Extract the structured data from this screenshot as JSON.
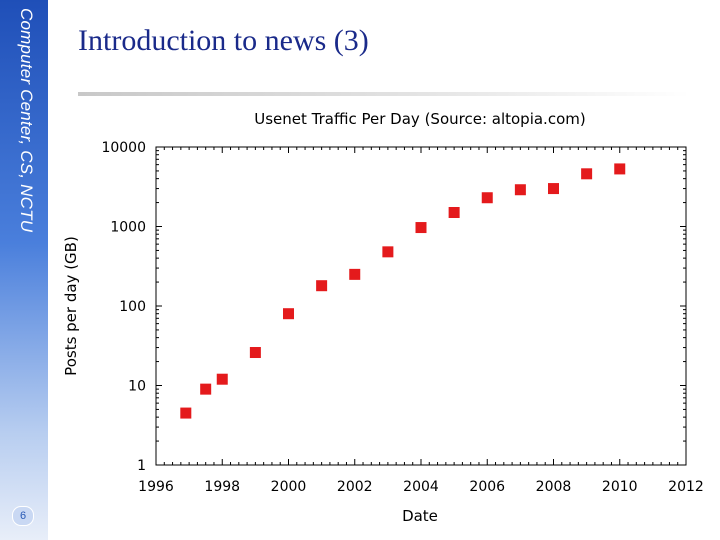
{
  "sidebar": {
    "label": "Computer Center, CS, NCTU",
    "page_number": "6"
  },
  "slide": {
    "title": "Introduction to news (3)"
  },
  "colors": {
    "marker": "#e41a1c",
    "sidebar_top": "#1f4fb8",
    "title": "#1a2a8a"
  },
  "chart_data": {
    "type": "scatter",
    "title": "Usenet Traffic Per Day (Source: altopia.com)",
    "xlabel": "Date",
    "ylabel": "Posts per day (GB)",
    "xlim": [
      1996,
      2012
    ],
    "ylim": [
      1,
      10000
    ],
    "yscale": "log",
    "x_ticks": [
      "1996",
      "1998",
      "2000",
      "2002",
      "2004",
      "2006",
      "2008",
      "2010",
      "2012"
    ],
    "y_ticks": [
      "1",
      "10",
      "100",
      "1000",
      "10000"
    ],
    "grid": false,
    "series": [
      {
        "points": [
          {
            "x": 1996.9,
            "y": 4.5
          },
          {
            "x": 1997.5,
            "y": 9
          },
          {
            "x": 1998.0,
            "y": 12
          },
          {
            "x": 1999.0,
            "y": 26
          },
          {
            "x": 2000.0,
            "y": 80
          },
          {
            "x": 2001.0,
            "y": 180
          },
          {
            "x": 2002.0,
            "y": 250
          },
          {
            "x": 2003.0,
            "y": 480
          },
          {
            "x": 2004.0,
            "y": 970
          },
          {
            "x": 2005.0,
            "y": 1500
          },
          {
            "x": 2006.0,
            "y": 2300
          },
          {
            "x": 2007.0,
            "y": 2900
          },
          {
            "x": 2008.0,
            "y": 3000
          },
          {
            "x": 2009.0,
            "y": 4600
          },
          {
            "x": 2010.0,
            "y": 5300
          }
        ]
      }
    ]
  }
}
